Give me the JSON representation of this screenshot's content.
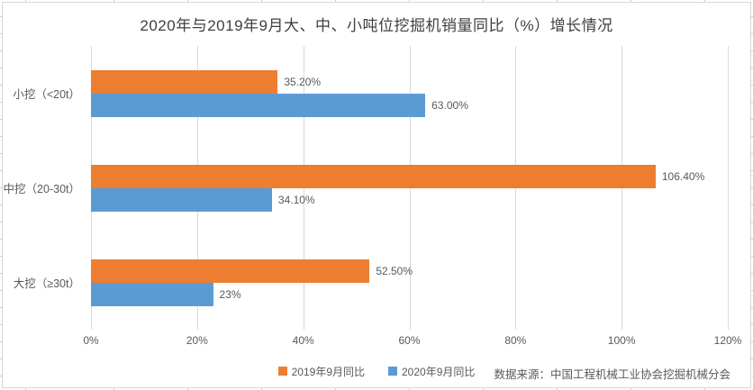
{
  "chart_data": {
    "type": "bar",
    "orientation": "horizontal",
    "title": "2020年与2019年9月大、中、小吨位挖掘机销量同比（%）增长情况",
    "categories": [
      "小挖（<20t）",
      "中挖（20-30t）",
      "大挖（≥30t）"
    ],
    "series": [
      {
        "name": "2019年9月同比",
        "color": "#ED7D31",
        "values": [
          35.2,
          106.4,
          52.5
        ],
        "labels": [
          "35.20%",
          "106.40%",
          "52.50%"
        ]
      },
      {
        "name": "2020年9月同比",
        "color": "#5B9BD5",
        "values": [
          63.0,
          34.1,
          23.0
        ],
        "labels": [
          "63.00%",
          "34.10%",
          "23%"
        ]
      }
    ],
    "x_axis": {
      "values": [
        0,
        20,
        40,
        60,
        80,
        100,
        120
      ],
      "ticks": [
        "0%",
        "20%",
        "40%",
        "60%",
        "80%",
        "100%",
        "120%"
      ],
      "min": 0,
      "max": 120
    },
    "grid": true,
    "legend_position": "bottom",
    "source_note": "数据来源：中国工程机械工业协会挖掘机械分会"
  },
  "colors": {
    "series_2019": "#ED7D31",
    "series_2020": "#5B9BD5",
    "gridline": "#D9D9D9",
    "text": "#595959",
    "title_text": "#404040",
    "chart_border": "#D6D6D6",
    "background": "#FFFFFF"
  }
}
